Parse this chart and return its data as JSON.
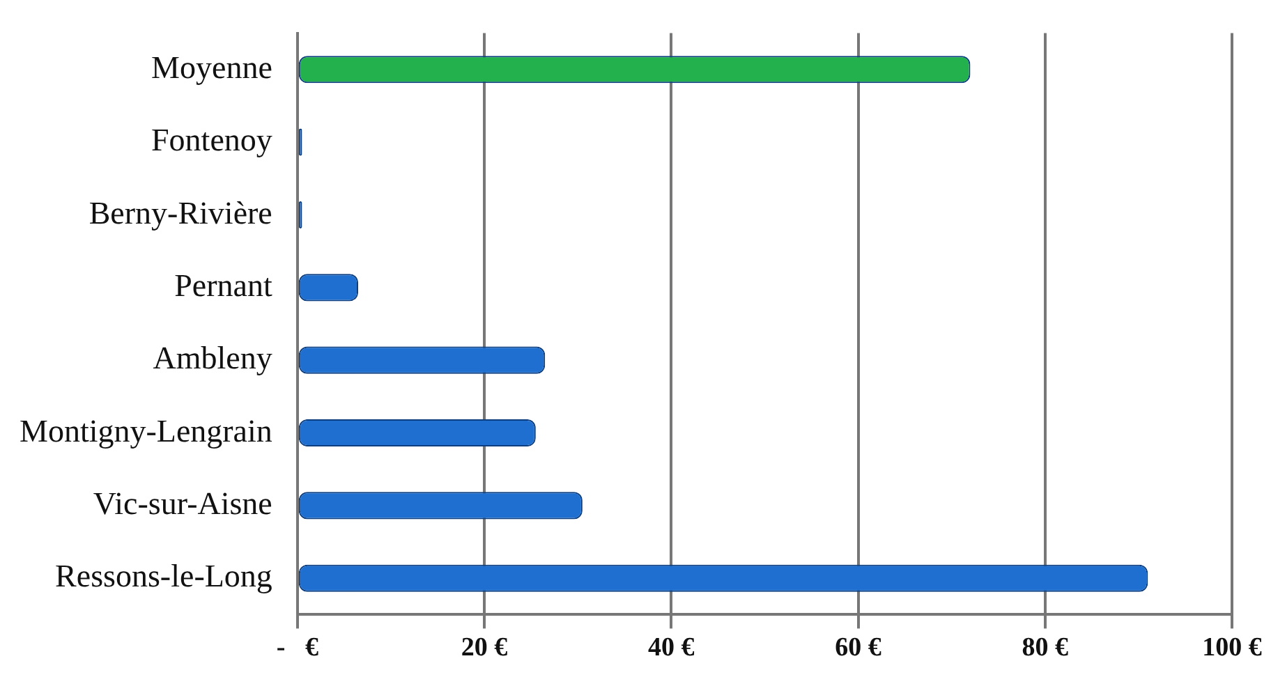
{
  "chart_data": {
    "type": "bar",
    "orientation": "horizontal",
    "categories": [
      "Moyenne",
      "Fontenoy",
      "Berny-Rivière",
      "Pernant",
      "Ambleny",
      "Montigny-Lengrain",
      "Vic-sur-Aisne",
      "Ressons-le-Long"
    ],
    "values": [
      72,
      0.5,
      0.5,
      6.5,
      26.5,
      25.5,
      30.5,
      91
    ],
    "colors": [
      "#22b14c",
      "#1f6fd0",
      "#1f6fd0",
      "#1f6fd0",
      "#1f6fd0",
      "#1f6fd0",
      "#1f6fd0",
      "#1f6fd0"
    ],
    "xlim": [
      0,
      100
    ],
    "xticks": [
      {
        "value": 0,
        "label": "-   €"
      },
      {
        "value": 20,
        "label": "20 €"
      },
      {
        "value": 40,
        "label": "40 €"
      },
      {
        "value": 60,
        "label": "60 €"
      },
      {
        "value": 80,
        "label": "80 €"
      },
      {
        "value": 100,
        "label": "100 €"
      }
    ],
    "grid": "x"
  }
}
